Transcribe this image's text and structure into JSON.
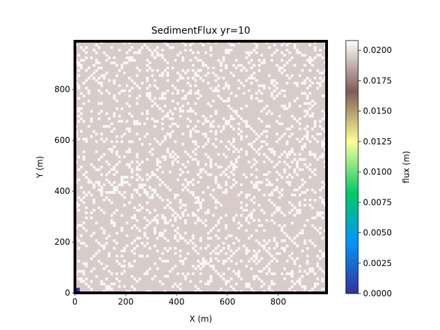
{
  "chart_data": {
    "type": "heatmap",
    "title": "SedimentFlux yr=10",
    "xlabel": "X (m)",
    "ylabel": "Y (m)",
    "xlim": [
      0,
      990
    ],
    "ylim": [
      0,
      990
    ],
    "xticks": [
      0,
      200,
      400,
      600,
      800
    ],
    "yticks": [
      0,
      200,
      400,
      600,
      800
    ],
    "grid": false,
    "grid_cells": 100,
    "cell_size": 10,
    "base_flux": 0.0195,
    "channel_flux": 0.0206,
    "outlet": {
      "x": 0,
      "y": 0,
      "flux": 0.0
    },
    "colormap": "terrain",
    "colorbar": {
      "label": "flux (m)",
      "min": 0.0,
      "max": 0.0208,
      "ticks": [
        "0.0000",
        "0.0025",
        "0.0050",
        "0.0075",
        "0.0100",
        "0.0125",
        "0.0150",
        "0.0175",
        "0.0200"
      ],
      "tick_values": [
        0.0,
        0.0025,
        0.005,
        0.0075,
        0.01,
        0.0125,
        0.015,
        0.0175,
        0.02
      ],
      "colors": [
        "#333399",
        "#0394f9",
        "#01cc66",
        "#ffff99",
        "#805c54",
        "#ffffff"
      ]
    },
    "border_color": "#000000"
  }
}
